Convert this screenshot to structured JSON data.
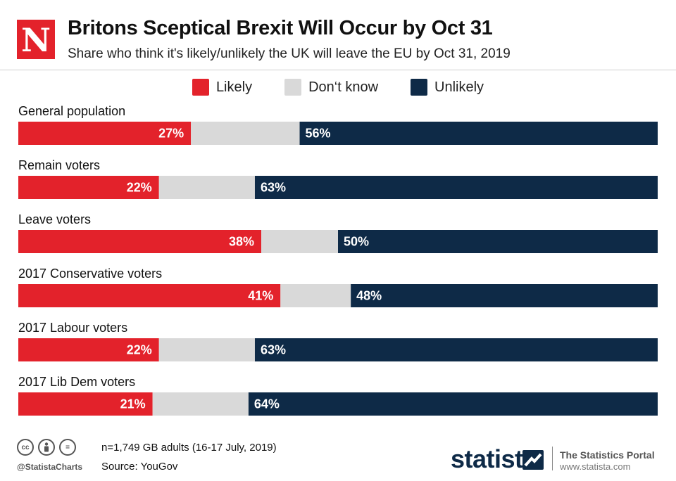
{
  "header": {
    "logo_letter": "N",
    "title": "Britons Sceptical Brexit Will Occur by Oct 31",
    "subtitle": "Share who think it's likely/unlikely the UK will leave the EU by Oct 31, 2019"
  },
  "legend": [
    {
      "label": "Likely",
      "color": "#e3222b"
    },
    {
      "label": "Don‘t know",
      "color": "#d9d9d9"
    },
    {
      "label": "Unlikely",
      "color": "#0e2a47"
    }
  ],
  "chart_data": {
    "type": "bar",
    "orientation": "horizontal",
    "stacked": true,
    "title": "Britons Sceptical Brexit Will Occur by Oct 31",
    "subtitle": "Share who think it's likely/unlikely the UK will leave the EU by Oct 31, 2019",
    "categories": [
      "General population",
      "Remain voters",
      "Leave voters",
      "2017 Conservative voters",
      "2017 Labour voters",
      "2017 Lib Dem voters"
    ],
    "series": [
      {
        "name": "Likely",
        "color": "#e3222b",
        "values": [
          27,
          22,
          38,
          41,
          22,
          21
        ],
        "labels": [
          "27%",
          "22%",
          "38%",
          "41%",
          "22%",
          "21%"
        ]
      },
      {
        "name": "Don‘t know",
        "color": "#d9d9d9",
        "values": [
          17,
          15,
          12,
          11,
          15,
          15
        ],
        "labels": []
      },
      {
        "name": "Unlikely",
        "color": "#0e2a47",
        "values": [
          56,
          63,
          50,
          48,
          63,
          64
        ],
        "labels": [
          "56%",
          "63%",
          "50%",
          "48%",
          "63%",
          "64%"
        ]
      }
    ],
    "xlim": [
      0,
      100
    ],
    "legend_position": "top-center",
    "grid": false
  },
  "footer": {
    "cc_icons": [
      "cc",
      "by",
      "="
    ],
    "handle": "@StatistaCharts",
    "note": "n=1,749 GB adults (16-17 July, 2019)",
    "source": "Source: YouGov",
    "brand": "statista",
    "portal": "The Statistics Portal",
    "portal_url": "www.statista.com"
  }
}
